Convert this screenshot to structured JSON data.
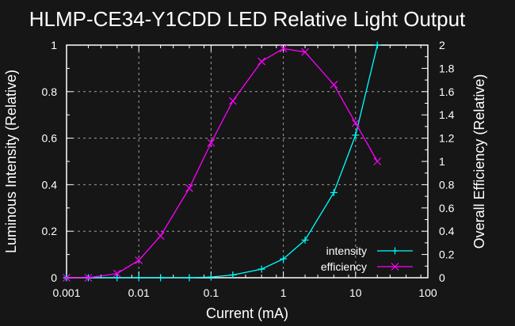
{
  "chart_data": {
    "type": "line",
    "title": "HLMP-CE34-Y1CDD LED Relative Light Output",
    "xlabel": "Current (mA)",
    "ylabel": "Luminous Intensity (Relative)",
    "y2label": "Overall Efficiency (Relative)",
    "xscale": "log",
    "xlim": [
      0.001,
      100
    ],
    "ylim": [
      0,
      1
    ],
    "y2lim": [
      0,
      2
    ],
    "grid": true,
    "legend_position": "bottom-right",
    "x_ticks": [
      "0.001",
      "0.01",
      "0.1",
      "1",
      "10",
      "100"
    ],
    "x_tick_values": [
      0.001,
      0.01,
      0.1,
      1,
      10,
      100
    ],
    "y_ticks": [
      "0",
      "0.2",
      "0.4",
      "0.6",
      "0.8",
      "1"
    ],
    "y_tick_values": [
      0,
      0.2,
      0.4,
      0.6,
      0.8,
      1
    ],
    "y2_ticks": [
      "0",
      "0.2",
      "0.4",
      "0.6",
      "0.8",
      "1",
      "1.2",
      "1.4",
      "1.6",
      "1.8",
      "2"
    ],
    "y2_tick_values": [
      0,
      0.2,
      0.4,
      0.6,
      0.8,
      1,
      1.2,
      1.4,
      1.6,
      1.8,
      2
    ],
    "series": [
      {
        "name": "intensity",
        "axis": "y",
        "color": "#00ffff",
        "marker": "plus",
        "x": [
          0.001,
          0.002,
          0.005,
          0.01,
          0.02,
          0.05,
          0.1,
          0.2,
          0.5,
          1,
          2,
          5,
          10,
          20
        ],
        "values": [
          0,
          0,
          0,
          0,
          0,
          0,
          0.003,
          0.012,
          0.037,
          0.081,
          0.162,
          0.366,
          0.613,
          1.0
        ]
      },
      {
        "name": "efficiency",
        "axis": "y2",
        "color": "#ff00ff",
        "marker": "cross",
        "x": [
          0.001,
          0.002,
          0.005,
          0.01,
          0.02,
          0.05,
          0.1,
          0.2,
          0.5,
          1,
          2,
          5,
          10,
          20
        ],
        "values": [
          0,
          0,
          0.036,
          0.15,
          0.36,
          0.77,
          1.16,
          1.52,
          1.86,
          1.97,
          1.94,
          1.66,
          1.33,
          1.0
        ]
      }
    ]
  },
  "colors": {
    "background": "#161616",
    "axis": "#ffffff",
    "grid": "#a0a0a0"
  }
}
